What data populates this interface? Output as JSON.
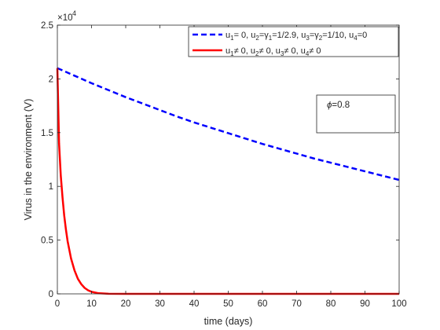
{
  "chart_data": {
    "type": "line",
    "title": "",
    "xlabel": "time (days)",
    "ylabel": "Virus in the environment (V)",
    "xlim": [
      0,
      100
    ],
    "ylim": [
      0,
      25000
    ],
    "x_ticks": [
      0,
      10,
      20,
      30,
      40,
      50,
      60,
      70,
      80,
      90,
      100
    ],
    "x_tick_labels": [
      "0",
      "10",
      "20",
      "30",
      "40",
      "50",
      "60",
      "70",
      "80",
      "90",
      "100"
    ],
    "y_ticks": [
      0,
      5000,
      10000,
      15000,
      20000,
      25000
    ],
    "y_tick_labels": [
      "0",
      "0.5",
      "1",
      "1.5",
      "2",
      "2.5"
    ],
    "y_multiplier": "×10",
    "y_multiplier_exp": "4",
    "grid": false,
    "legend_position": "top-right",
    "series": [
      {
        "legend_parts": [
          [
            "u",
            ""
          ],
          [
            "1",
            "sub"
          ],
          [
            "= 0, u",
            ""
          ],
          [
            "2",
            "sub"
          ],
          [
            "=",
            ""
          ],
          [
            "γ",
            ""
          ],
          [
            "1",
            "sub"
          ],
          [
            "=1/2.9, u",
            ""
          ],
          [
            "3",
            "sub"
          ],
          [
            "=",
            ""
          ],
          [
            "γ",
            ""
          ],
          [
            "2",
            "sub"
          ],
          [
            "=1/10, u",
            ""
          ],
          [
            "4",
            "sub"
          ],
          [
            "=0",
            ""
          ]
        ],
        "color": "#0000ff",
        "style": "dashed",
        "x": [
          0,
          5,
          10,
          15,
          20,
          25,
          30,
          35,
          40,
          45,
          50,
          55,
          60,
          65,
          70,
          75,
          80,
          85,
          90,
          95,
          100
        ],
        "values": [
          21000,
          20300,
          19600,
          18950,
          18300,
          17700,
          17100,
          16500,
          15950,
          15450,
          14950,
          14450,
          13950,
          13500,
          13050,
          12600,
          12200,
          11800,
          11400,
          11000,
          10600
        ]
      },
      {
        "legend_parts": [
          [
            "u",
            ""
          ],
          [
            "1",
            "sub"
          ],
          [
            "≠ 0, u",
            ""
          ],
          [
            "2",
            "sub"
          ],
          [
            "≠ 0, u",
            ""
          ],
          [
            "3",
            "sub"
          ],
          [
            "≠ 0, u",
            ""
          ],
          [
            "4",
            "sub"
          ],
          [
            "≠ 0",
            ""
          ]
        ],
        "color": "#ff0000",
        "style": "solid",
        "x": [
          0,
          0.5,
          1,
          1.5,
          2,
          2.5,
          3,
          4,
          5,
          6,
          7,
          8,
          9,
          10,
          12,
          15,
          20,
          30,
          40,
          50,
          60,
          70,
          80,
          90,
          100
        ],
        "values": [
          21000,
          14000,
          11000,
          9000,
          7300,
          6000,
          4900,
          3300,
          2200,
          1400,
          900,
          550,
          330,
          190,
          60,
          10,
          0,
          0,
          0,
          0,
          0,
          0,
          0,
          0,
          0
        ]
      }
    ],
    "annotation": {
      "symbol": "ϕ",
      "text": "=0.8"
    }
  }
}
